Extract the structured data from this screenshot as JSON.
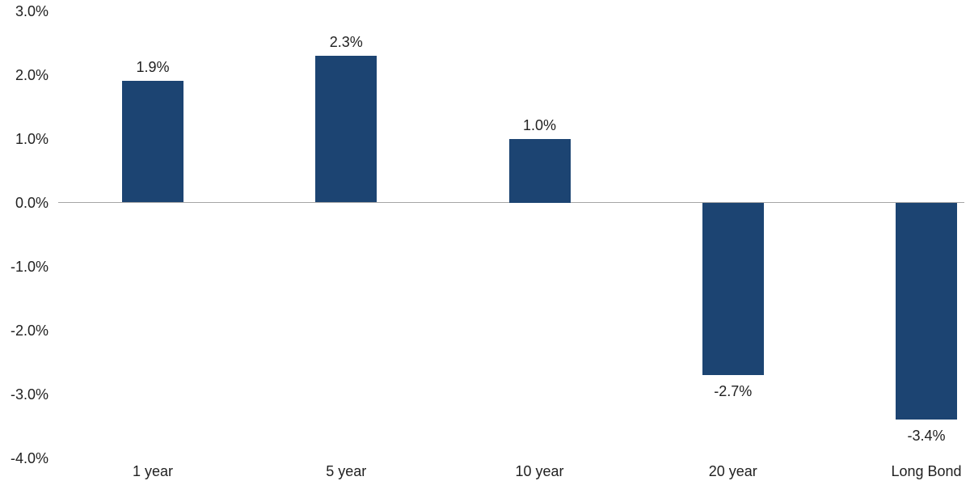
{
  "chart_data": {
    "type": "bar",
    "title": "",
    "xlabel": "",
    "ylabel": "",
    "categories": [
      "1 year",
      "5 year",
      "10 year",
      "20 year",
      "Long Bond"
    ],
    "values": [
      1.9,
      2.3,
      1.0,
      -2.7,
      -3.4
    ],
    "value_labels": [
      "1.9%",
      "2.3%",
      "1.0%",
      "-2.7%",
      "-3.4%"
    ],
    "ylim": [
      -4.0,
      3.0
    ],
    "y_tick_values": [
      3.0,
      2.0,
      1.0,
      0.0,
      -1.0,
      -2.0,
      -3.0,
      -4.0
    ],
    "y_tick_labels": [
      "3.0%",
      "2.0%",
      "1.0%",
      "0.0%",
      "-1.0%",
      "-2.0%",
      "-3.0%",
      "-4.0%"
    ],
    "grid": false,
    "legend": null,
    "colors": {
      "bar": "#1C4472",
      "axis_line": "#A6A6A6",
      "text": "#212121",
      "background": "#FFFFFF"
    }
  }
}
